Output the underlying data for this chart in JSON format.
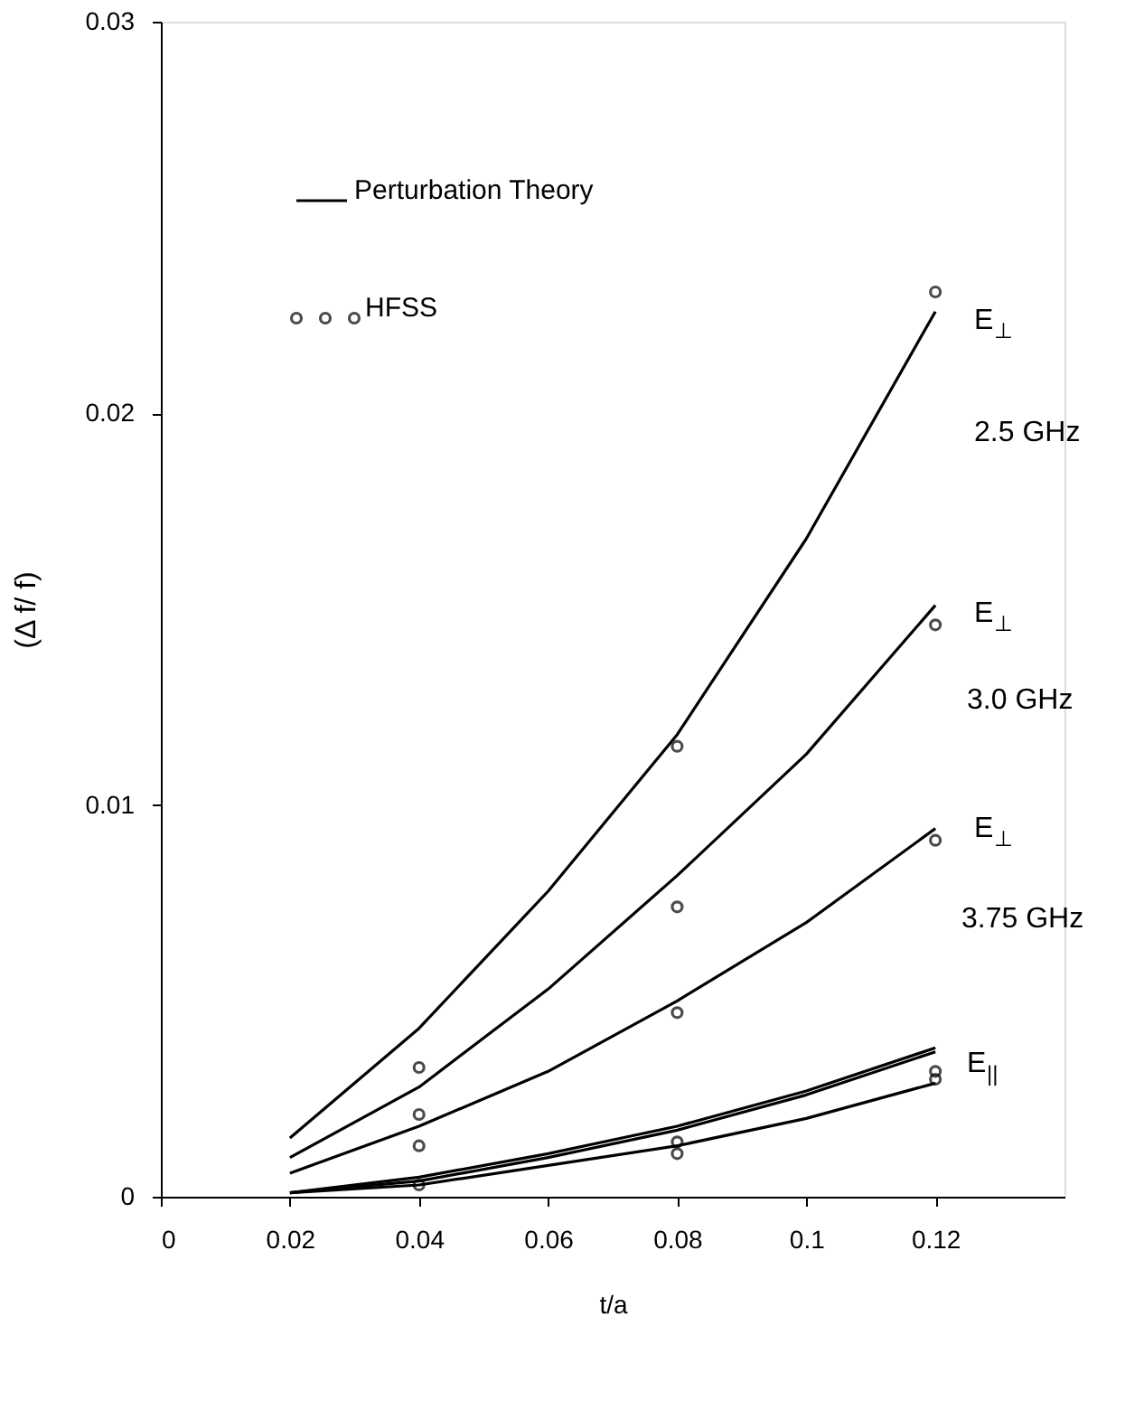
{
  "chart_data": {
    "type": "line",
    "xlabel": "t/a",
    "ylabel": "(Δ f/ f)",
    "x": [
      0.02,
      0.04,
      0.06,
      0.08,
      0.1,
      0.12
    ],
    "series": [
      {
        "name": "Perturbation Theory",
        "color": "#000000",
        "values": [
          0.0015,
          0.0043,
          0.0078,
          0.0118,
          0.0168,
          0.0226
        ]
      },
      {
        "color": "#000000",
        "values": [
          0.001,
          0.0028,
          0.0053,
          0.0082,
          0.0113,
          0.0151
        ]
      },
      {
        "color": "#000000",
        "values": [
          0.0006,
          0.0018,
          0.0032,
          0.005,
          0.007,
          0.0094
        ]
      },
      {
        "color": "#000000",
        "values": [
          0.0001,
          0.0005,
          0.0011,
          0.0018,
          0.0027,
          0.0038
        ]
      },
      {
        "color": "#000000",
        "values": [
          0.0001,
          0.0004,
          0.001,
          0.0017,
          0.0026,
          0.0037
        ]
      },
      {
        "color": "#000000",
        "values": [
          0.0001,
          0.0003,
          0.0008,
          0.0013,
          0.002,
          0.0029
        ]
      },
      {
        "name": "HFSS",
        "type": "scatter",
        "marker": "circle",
        "color": "#000000",
        "x": [
          0.04,
          0.08,
          0.12,
          0.04,
          0.08,
          0.12,
          0.04,
          0.08,
          0.12,
          0.04,
          0.08,
          0.08,
          0.12,
          0.12
        ],
        "values": [
          0.0033,
          0.0115,
          0.0231,
          0.0021,
          0.0074,
          0.0146,
          0.0013,
          0.0047,
          0.0091,
          0.0003,
          0.0014,
          0.0011,
          0.0032,
          0.003
        ]
      }
    ],
    "annotations": [
      "E$_{⊥}$",
      "2.5 GHz",
      "E$_{⊥}$",
      "3.0 GHz",
      "E$_{⊥}$",
      "3.75 GHz",
      "E$_{||}$"
    ],
    "xlim": [
      0,
      0.14
    ],
    "xticks": [
      0,
      0.02,
      0.04,
      0.06,
      0.08,
      0.1,
      0.12
    ],
    "ylim": [
      0,
      0.03
    ],
    "yticks": [
      0,
      0.01,
      0.02,
      0.03
    ],
    "grid": false,
    "legend": "top left"
  }
}
